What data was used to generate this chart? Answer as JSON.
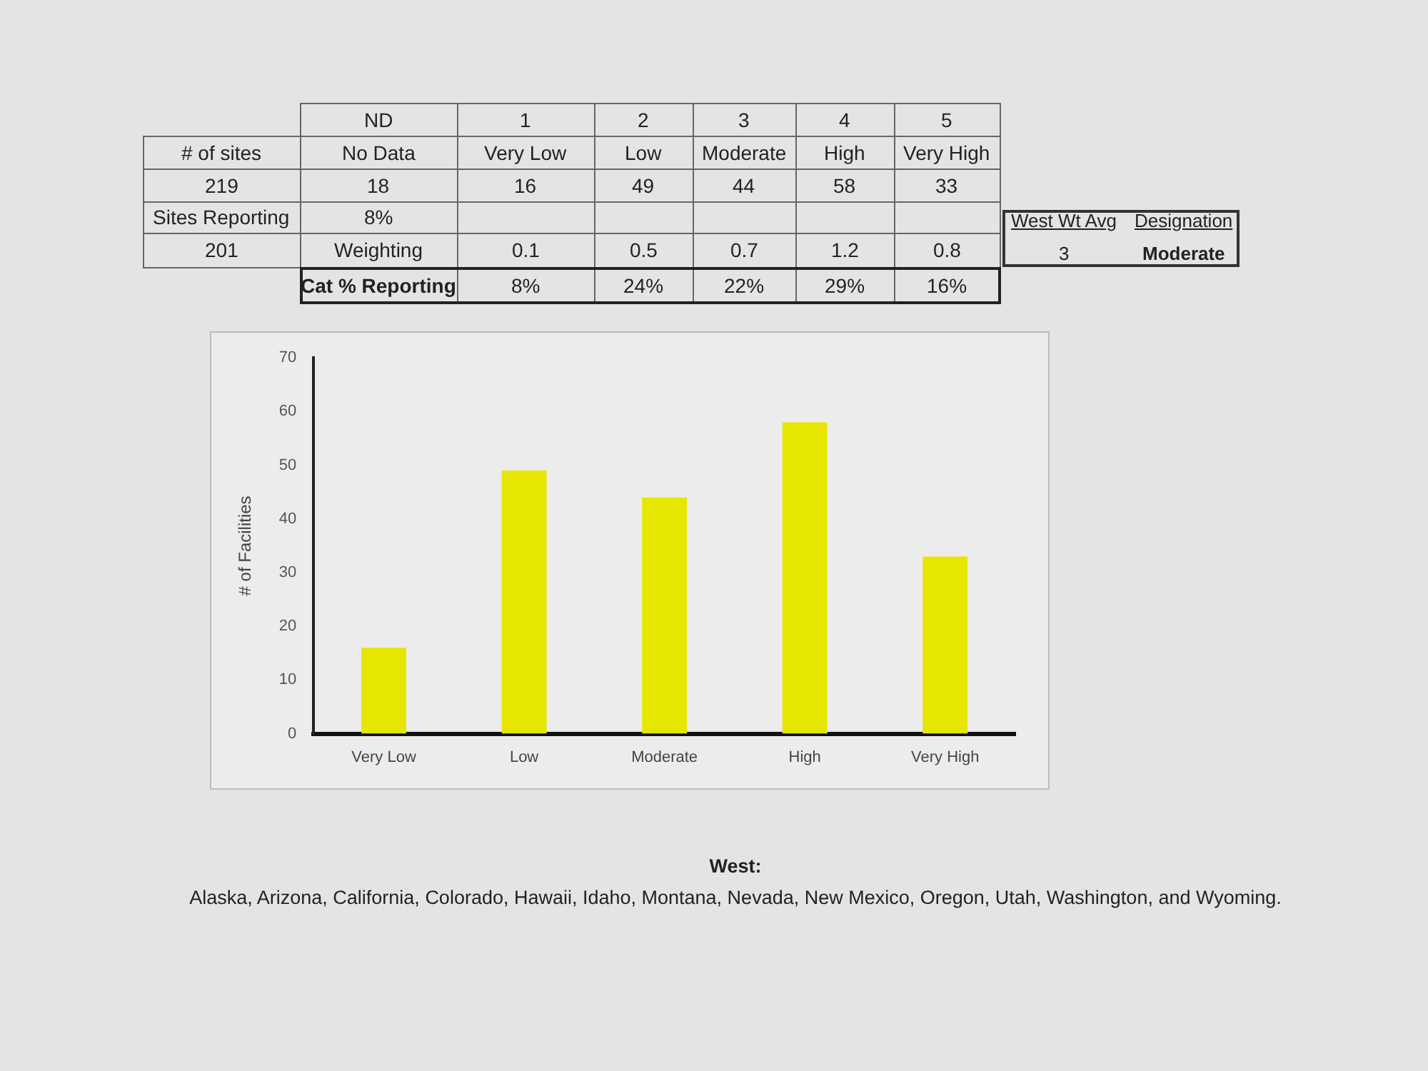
{
  "chart_data": {
    "type": "bar",
    "categories": [
      "Very Low",
      "Low",
      "Moderate",
      "High",
      "Very High"
    ],
    "values": [
      16,
      49,
      44,
      58,
      33
    ],
    "color": "#e6e600",
    "ylabel": "# of Facilities",
    "ylim": [
      0,
      70
    ],
    "yticks": [
      0,
      10,
      20,
      30,
      40,
      50,
      60,
      70
    ],
    "annotations": [
      "ND",
      "1",
      "2",
      "3",
      "4",
      "5",
      "# of sites",
      "No Data",
      "219",
      "18",
      "16",
      "49",
      "44",
      "58",
      "33",
      "Sites Reporting",
      "8%",
      "West Wt Avg",
      "Designation",
      "201",
      "Weighting",
      "0.1",
      "0.5",
      "0.7",
      "1.2",
      "0.8",
      "3",
      "Moderate",
      "Cat % Reporting",
      "8%",
      "24%",
      "22%",
      "29%",
      "16%",
      "West:",
      "Alaska, Arizona, California, Colorado, Hawaii, Idaho, Montana, Nevada, New Mexico, Oregon, Utah, Washington, and Wyoming."
    ]
  }
}
